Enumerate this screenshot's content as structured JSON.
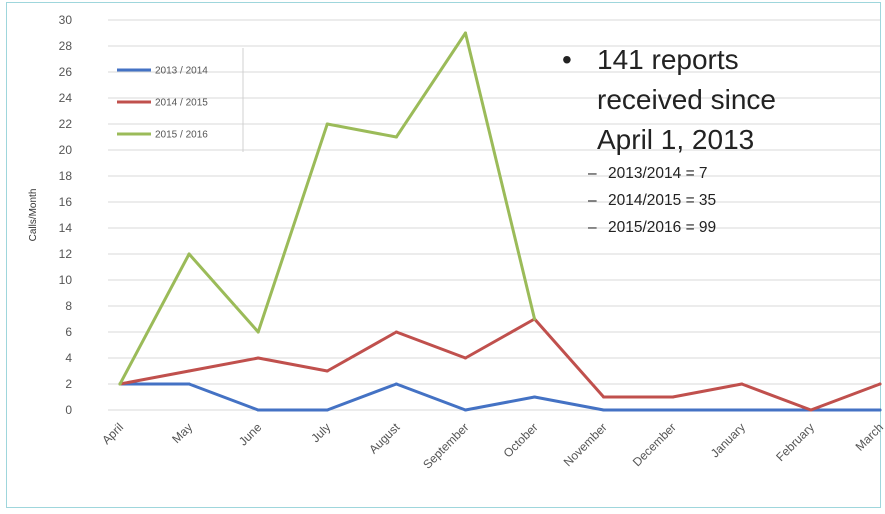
{
  "colors": {
    "series_2013_2014": "#4472c4",
    "series_2014_2015": "#c0504d",
    "series_2015_2016": "#9bbb59"
  },
  "annotation": {
    "bullet": "•",
    "main_lines": [
      "141 reports",
      "received since",
      "April 1, 2013"
    ],
    "sub_dash": "–",
    "sub_items": [
      "2013/2014 = 7",
      "2014/2015 = 35",
      "2015/2016 = 99"
    ]
  },
  "chart_data": {
    "type": "line",
    "title": "",
    "xlabel": "",
    "ylabel": "Calls/Month",
    "categories": [
      "April",
      "May",
      "June",
      "July",
      "August",
      "September",
      "October",
      "November",
      "December",
      "January",
      "February",
      "March"
    ],
    "ylim": [
      0,
      30
    ],
    "yticks": [
      0,
      2,
      4,
      6,
      8,
      10,
      12,
      14,
      16,
      18,
      20,
      22,
      24,
      26,
      28,
      30
    ],
    "grid": true,
    "legend_position": "top-left",
    "series": [
      {
        "name": "2013 / 2014",
        "color": "#4472c4",
        "values": [
          2,
          2,
          0,
          0,
          2,
          0,
          1,
          0,
          0,
          0,
          0,
          0
        ]
      },
      {
        "name": "2014 / 2015",
        "color": "#c0504d",
        "values": [
          2,
          3,
          4,
          3,
          6,
          4,
          7,
          1,
          1,
          2,
          0,
          2
        ]
      },
      {
        "name": "2015 / 2016",
        "color": "#9bbb59",
        "values": [
          2,
          12,
          6,
          22,
          21,
          29,
          7,
          null,
          null,
          null,
          null,
          null
        ]
      }
    ]
  }
}
